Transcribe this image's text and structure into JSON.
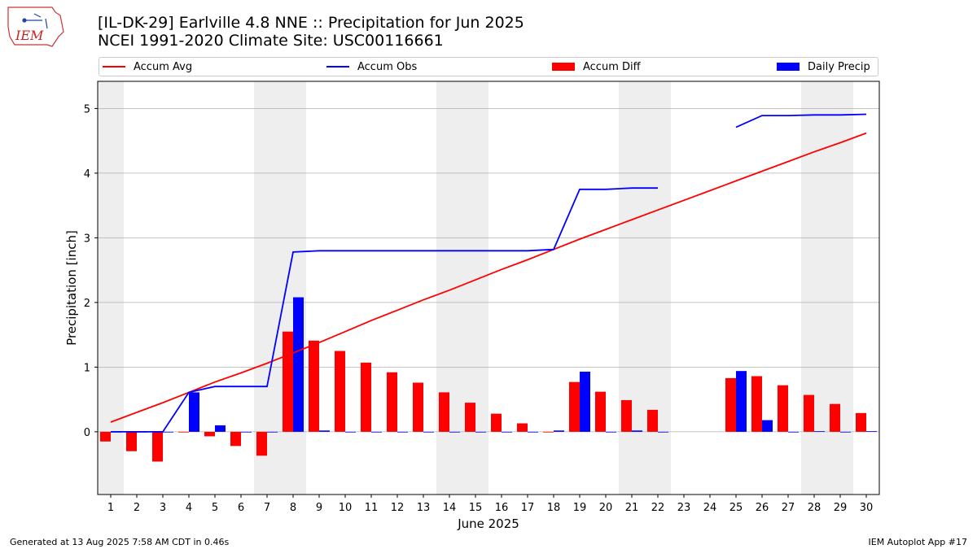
{
  "header": {
    "title_line1": "[IL-DK-29] Earlville 4.8 NNE :: Precipitation for Jun 2025",
    "title_line2": "NCEI 1991-2020 Climate Site: USC00116661",
    "logo_text": "IEM"
  },
  "legend": {
    "accum_avg": "Accum Avg",
    "accum_obs": "Accum Obs",
    "accum_diff": "Accum Diff",
    "daily_precip": "Daily Precip",
    "placement": "top (above plot)"
  },
  "footer": {
    "generated": "Generated at 13 Aug 2025 7:58 AM CDT in 0.46s",
    "app": "IEM Autoplot App #17"
  },
  "colors": {
    "accum_avg": "#ff0000",
    "accum_obs": "#0000ff",
    "accum_diff": "#ff0000",
    "daily_precip": "#0000ff",
    "weekend_shade": "#eeeeee",
    "grid": "#b0b0b0"
  },
  "chart_data": {
    "type": "bar",
    "title": "[IL-DK-29] Earlville 4.8 NNE :: Precipitation for Jun 2025",
    "subtitle": "NCEI 1991-2020 Climate Site: USC00116661",
    "xlabel": "June 2025",
    "ylabel": "Precipitation [inch]",
    "ylim": [
      -0.97,
      5.42
    ],
    "yticks": [
      0,
      1,
      2,
      3,
      4,
      5
    ],
    "grid": true,
    "days": [
      1,
      2,
      3,
      4,
      5,
      6,
      7,
      8,
      9,
      10,
      11,
      12,
      13,
      14,
      15,
      16,
      17,
      18,
      19,
      20,
      21,
      22,
      23,
      24,
      25,
      26,
      27,
      28,
      29,
      30
    ],
    "weekend_days": [
      1,
      7,
      8,
      14,
      15,
      21,
      22,
      28,
      29
    ],
    "series": [
      {
        "name": "Accum Avg",
        "kind": "line",
        "values": [
          0.15,
          0.3,
          0.45,
          0.61,
          0.77,
          0.91,
          1.06,
          1.22,
          1.38,
          1.55,
          1.72,
          1.88,
          2.04,
          2.19,
          2.35,
          2.51,
          2.66,
          2.82,
          2.98,
          3.13,
          3.28,
          3.43,
          3.58,
          3.73,
          3.88,
          4.03,
          4.18,
          4.33,
          4.47,
          4.62
        ]
      },
      {
        "name": "Accum Obs",
        "kind": "line",
        "values": [
          0.0,
          0.0,
          0.0,
          0.61,
          0.7,
          0.7,
          0.7,
          2.78,
          2.8,
          2.8,
          2.8,
          2.8,
          2.8,
          2.8,
          2.8,
          2.8,
          2.8,
          2.82,
          3.75,
          3.75,
          3.77,
          3.77,
          null,
          null,
          4.71,
          4.89,
          4.89,
          4.9,
          4.9,
          4.91
        ]
      },
      {
        "name": "Accum Diff",
        "kind": "bar",
        "values": [
          -0.15,
          -0.3,
          -0.46,
          0.0,
          -0.07,
          -0.22,
          -0.37,
          1.55,
          1.41,
          1.25,
          1.07,
          0.92,
          0.76,
          0.61,
          0.45,
          0.28,
          0.13,
          0.0,
          0.77,
          0.62,
          0.49,
          0.34,
          null,
          null,
          0.83,
          0.86,
          0.72,
          0.57,
          0.43,
          0.29
        ]
      },
      {
        "name": "Daily Precip",
        "kind": "bar",
        "values": [
          0.0,
          0.0,
          0.0,
          0.61,
          0.1,
          0.0,
          0.0,
          2.08,
          0.02,
          0.0,
          0.0,
          0.0,
          0.0,
          0.0,
          0.0,
          0.0,
          0.0,
          0.02,
          0.93,
          0.0,
          0.02,
          0.0,
          null,
          null,
          0.94,
          0.18,
          0.0,
          0.01,
          0.0,
          0.01
        ]
      }
    ]
  }
}
